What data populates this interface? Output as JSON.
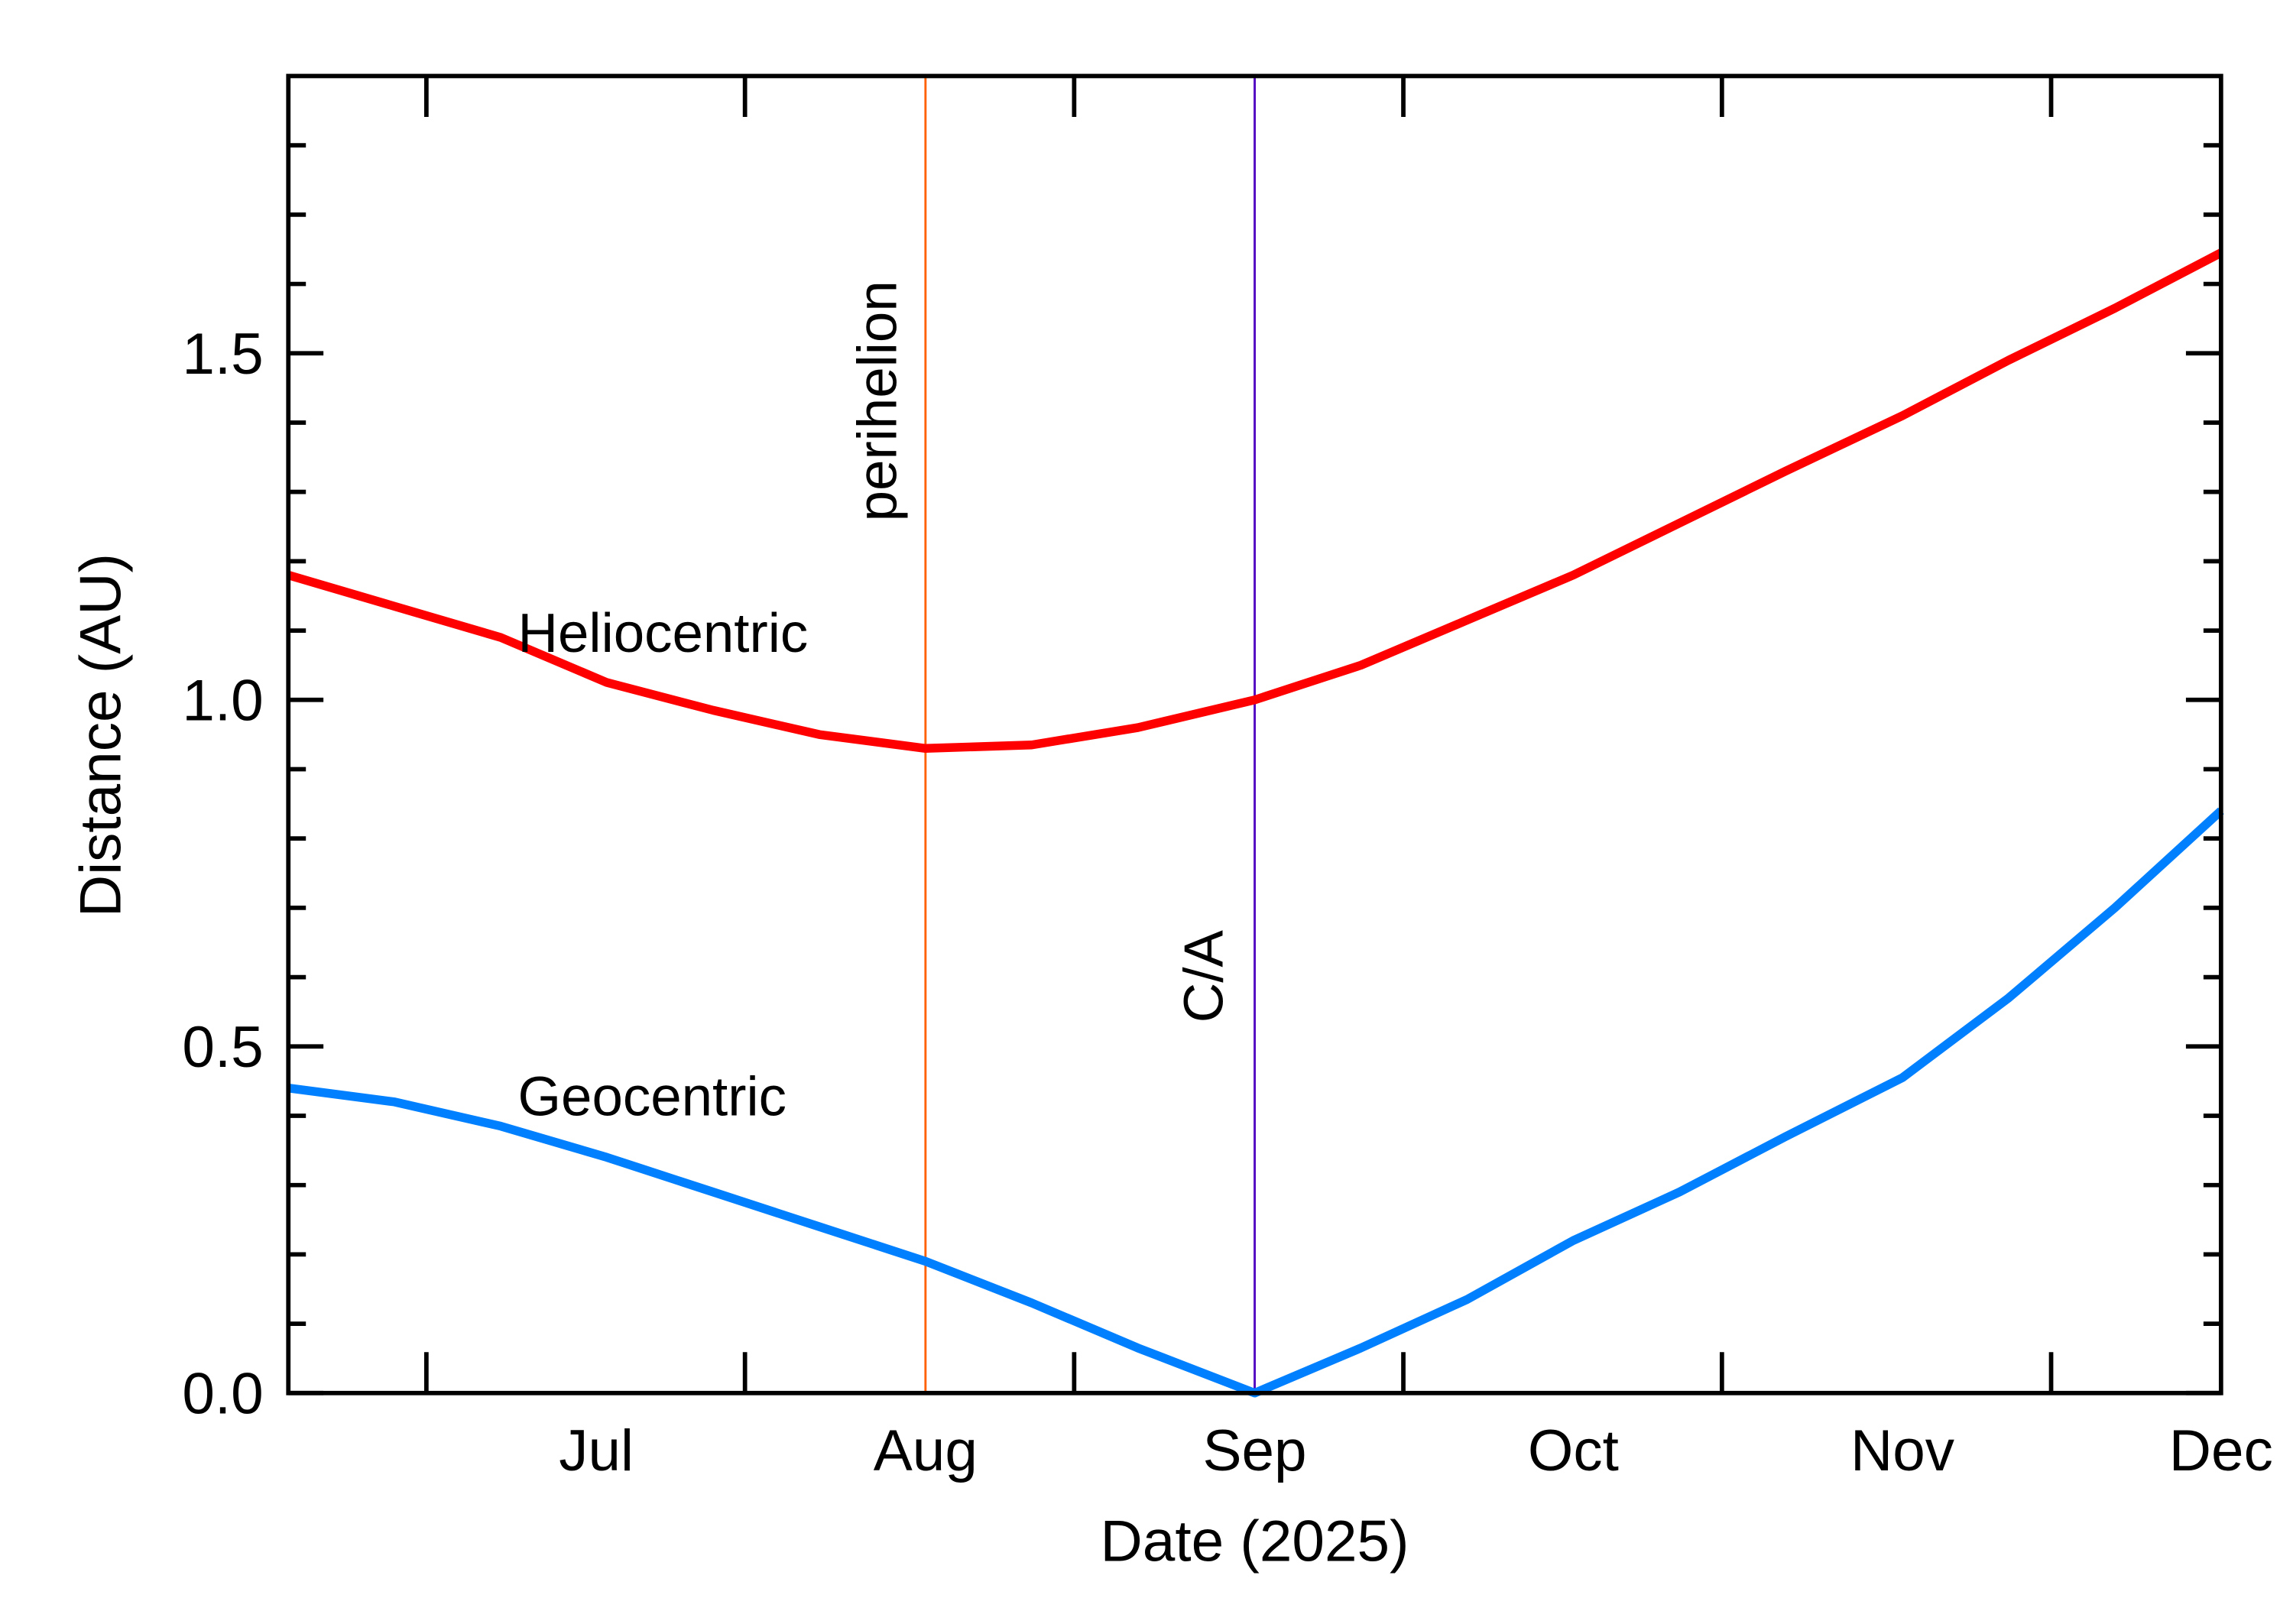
{
  "chart_data": {
    "type": "line",
    "x_label": "Date (2025)",
    "y_label": "Distance (AU)",
    "x": [
      153,
      163,
      173,
      183,
      193,
      203,
      213,
      223,
      233,
      244,
      254,
      264,
      274,
      284,
      294,
      305,
      315,
      325,
      335
    ],
    "series": [
      {
        "name": "Heliocentric",
        "color": "#ff0000",
        "values": [
          1.18,
          1.135,
          1.09,
          1.025,
          0.985,
          0.95,
          0.93,
          0.935,
          0.96,
          1.0,
          1.05,
          1.115,
          1.18,
          1.255,
          1.33,
          1.41,
          1.49,
          1.565,
          1.645
        ]
      },
      {
        "name": "Geocentric",
        "color": "#0080ff",
        "values": [
          0.44,
          0.42,
          0.385,
          0.34,
          0.29,
          0.24,
          0.19,
          0.13,
          0.065,
          0.0,
          0.065,
          0.135,
          0.22,
          0.29,
          0.37,
          0.455,
          0.57,
          0.7,
          0.84
        ]
      }
    ],
    "xlim": [
      153,
      335
    ],
    "xticks": [
      {
        "value": 182,
        "label": "Jul"
      },
      {
        "value": 213,
        "label": "Aug"
      },
      {
        "value": 244,
        "label": "Sep"
      },
      {
        "value": 274,
        "label": "Oct"
      },
      {
        "value": 305,
        "label": "Nov"
      },
      {
        "value": 335,
        "label": "Dec"
      }
    ],
    "xminorticks": [
      166,
      196,
      227,
      258,
      288,
      319
    ],
    "ylim": [
      0,
      1.9
    ],
    "yticks": [
      {
        "value": 0,
        "label": "0.0"
      },
      0.5,
      {
        "value": 1,
        "label": "1.0"
      },
      1.5
    ],
    "yminorticks": [
      0.1,
      0.2,
      0.3,
      0.4,
      0.6,
      0.7,
      0.8,
      0.9,
      1.1,
      1.2,
      1.3,
      1.4,
      1.6,
      1.7,
      1.8
    ],
    "events": [
      {
        "label": "perihelion",
        "x": 213,
        "color": "#ff6000"
      },
      {
        "label": "C/A",
        "x": 244,
        "color": "#5000c0"
      }
    ]
  }
}
